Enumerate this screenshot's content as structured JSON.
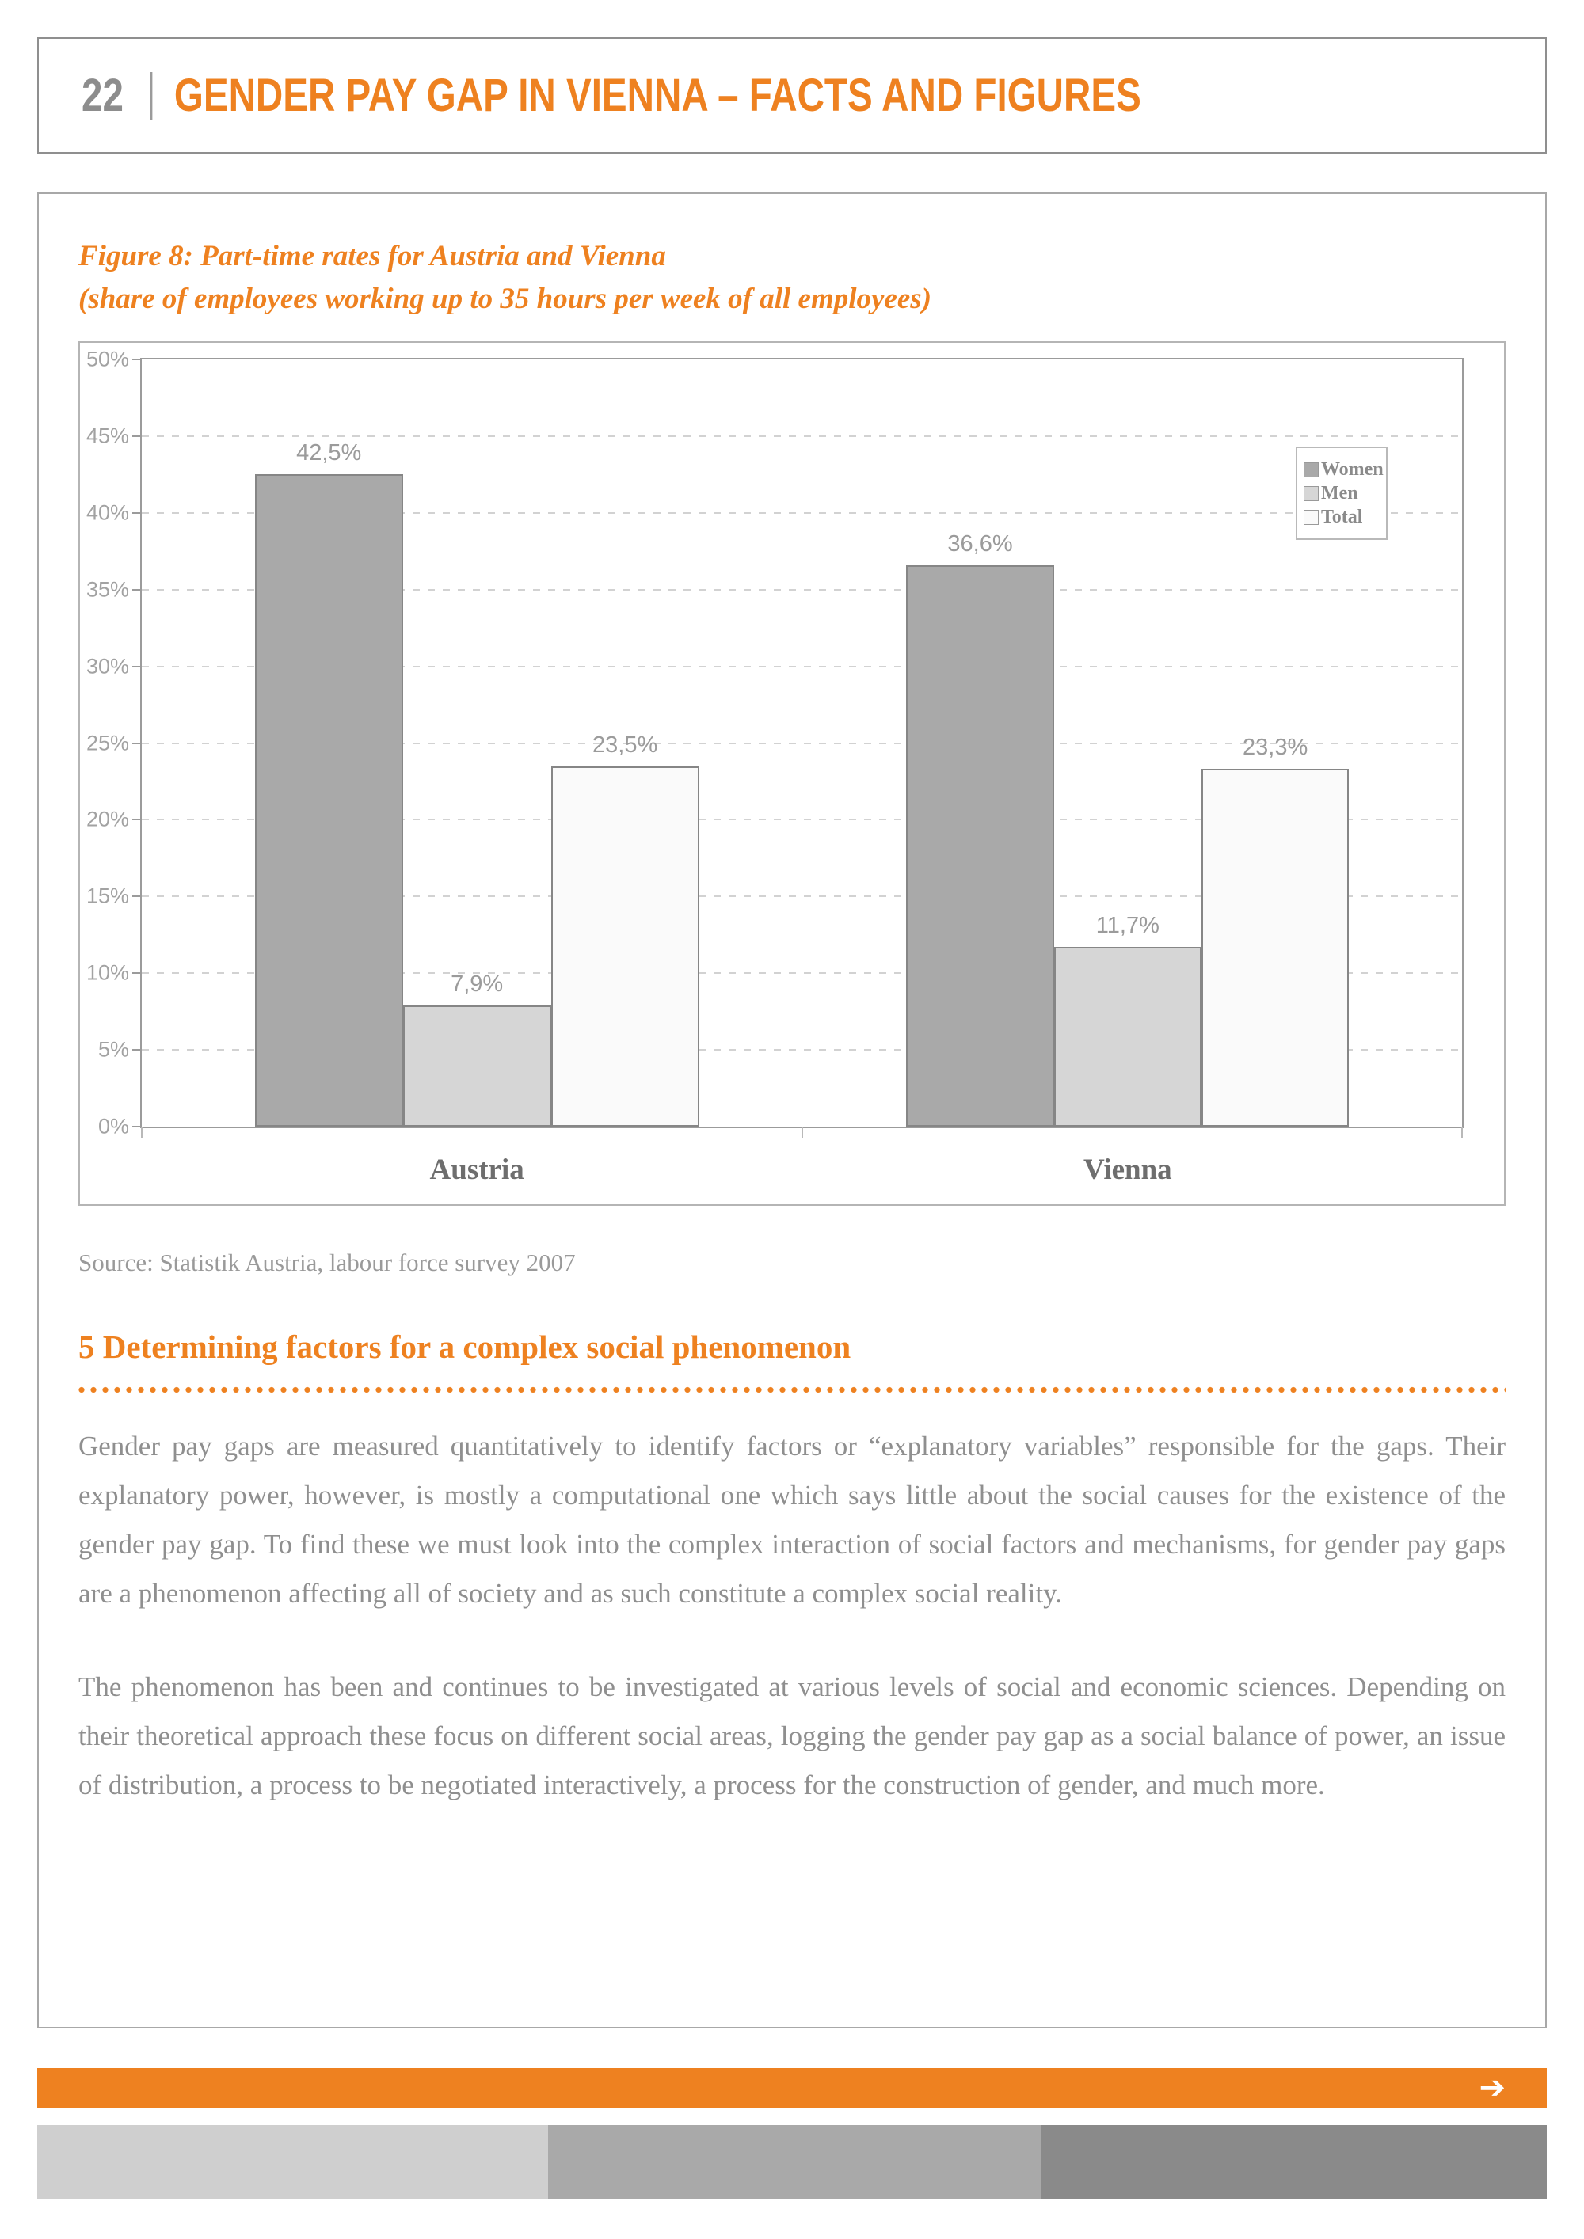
{
  "page": {
    "number": "22",
    "title": "GENDER PAY GAP IN VIENNA – FACTS AND FIGURES"
  },
  "figure": {
    "title_line1": "Figure 8: Part-time rates for Austria and Vienna",
    "title_line2": "(share of employees working up to 35 hours per week of all employees)",
    "source": "Source: Statistik Austria, labour force survey 2007"
  },
  "chart_data": {
    "type": "bar",
    "title": "Part-time rates for Austria and Vienna",
    "categories": [
      "Austria",
      "Vienna"
    ],
    "series": [
      {
        "name": "Women",
        "values": [
          42.5,
          36.6
        ],
        "labels": [
          "42,5%",
          "36,6%"
        ],
        "color": "#a9a9a9"
      },
      {
        "name": "Men",
        "values": [
          7.9,
          11.7
        ],
        "labels": [
          "7,9%",
          "11,7%"
        ],
        "color": "#d6d6d6"
      },
      {
        "name": "Total",
        "values": [
          23.5,
          23.3
        ],
        "labels": [
          "23,5%",
          "23,3%"
        ],
        "color": "#fafafa"
      }
    ],
    "ylim": [
      0,
      50
    ],
    "ytick_step": 5,
    "ytick_labels": [
      "0%",
      "5%",
      "10%",
      "15%",
      "20%",
      "25%",
      "30%",
      "35%",
      "40%",
      "45%",
      "50%"
    ],
    "grid": "horizontal-dashed",
    "legend_position": "upper-right",
    "legend_entries": [
      "Women",
      "Men",
      "Total"
    ]
  },
  "section": {
    "heading": "5 Determining factors for a complex social phenomenon",
    "paragraphs": [
      "Gender pay gaps are measured quantitatively to identify factors or “explanatory variables” responsible for the gaps. Their explanatory power, however, is mostly a computational one which says little about the social causes for the existence of the gender pay gap. To find these we must look into the complex interaction of social factors and mechanisms, for gender pay gaps are a phenomenon affecting all of society and as such constitute a complex social reality.",
      "The phenomenon has been and continues to be investigated at various levels of social and economic sciences. Depending on their theoretical approach these focus on different social areas, logging the gender pay gap as a social balance of power, an issue of distribution, a process to be negotiated interactively, a process for the construction of gender, and much more."
    ]
  },
  "footer": {
    "arrow": "➔",
    "accent_color": "#ee8120",
    "band_colors": [
      "#cfcfcf",
      "#a9a9a9",
      "#8a8a8a"
    ]
  },
  "colors": {
    "accent_orange": "#ee8120",
    "body_text_gray": "#8f8f8f",
    "chart_border_gray": "#9b9b9b"
  }
}
